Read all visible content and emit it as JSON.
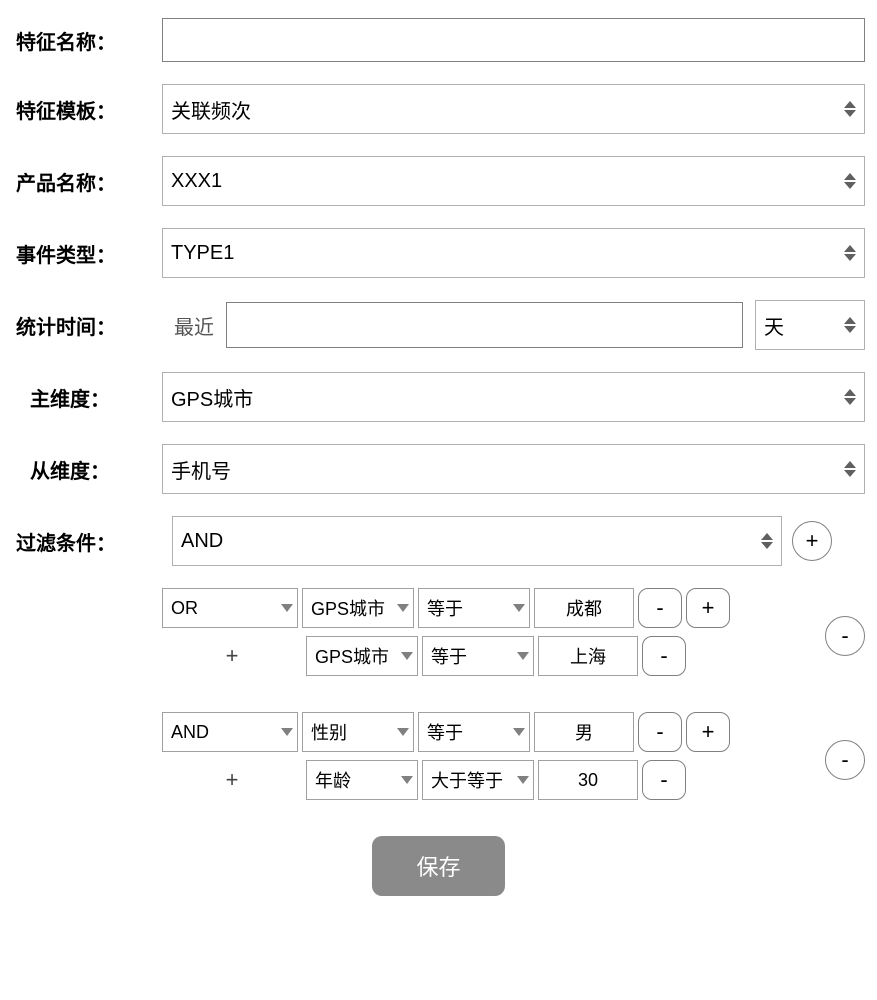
{
  "labels": {
    "feature_name": "特征名称：",
    "feature_template": "特征模板：",
    "product_name": "产品名称：",
    "event_type": "事件类型：",
    "stat_time": "统计时间：",
    "main_dim": "主维度：",
    "sub_dim": "从维度：",
    "filter": "过滤条件："
  },
  "values": {
    "feature_name": "",
    "feature_template": "关联频次",
    "product_name": "XXX1",
    "event_type": "TYPE1",
    "stat_time_prefix": "最近",
    "stat_time_value": "",
    "stat_time_unit": "天",
    "main_dim": "GPS城市",
    "sub_dim": "手机号",
    "filter_logic": "AND"
  },
  "cond_groups": [
    {
      "logic": "OR",
      "rows": [
        {
          "field": "GPS城市",
          "op": "等于",
          "value": "成都",
          "show_add": true
        },
        {
          "field": "GPS城市",
          "op": "等于",
          "value": "上海",
          "show_add": false
        }
      ]
    },
    {
      "logic": "AND",
      "rows": [
        {
          "field": "性别",
          "op": "等于",
          "value": "男",
          "show_add": true
        },
        {
          "field": "年龄",
          "op": "大于等于",
          "value": "30",
          "show_add": false
        }
      ]
    }
  ],
  "buttons": {
    "save": "保存",
    "add": "+",
    "remove": "-",
    "add_row": "+"
  },
  "colors": {
    "border": "#808080",
    "spinner_arrow": "#606060",
    "save_bg": "#8a8a8a",
    "save_fg": "#ffffff"
  }
}
